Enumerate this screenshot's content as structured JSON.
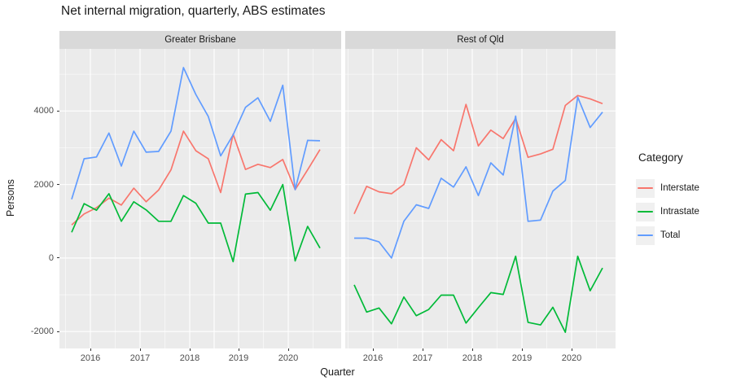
{
  "page_title": "Net internal migration, quarterly, ABS estimates",
  "legend": {
    "title": "Category",
    "items": [
      {
        "label": "Interstate",
        "color": "#F8766D"
      },
      {
        "label": "Intrastate",
        "color": "#00BA38"
      },
      {
        "label": "Total",
        "color": "#619CFF"
      }
    ]
  },
  "colors": {
    "strip_background": "#D9D9D9",
    "panel_background": "#EBEBEB",
    "gridline": "#FFFFFF",
    "axis_text": "#4D4D4D",
    "text": "#1A1A1A",
    "interstate": "#F8766D",
    "intrastate": "#00BA38",
    "total": "#619CFF"
  },
  "chart_data": {
    "type": "line",
    "title": "Net internal migration, quarterly, ABS estimates",
    "xlabel": "Quarter",
    "ylabel": "Persons",
    "grid": true,
    "legend_position": "right",
    "x": [
      "2015 Q3",
      "2015 Q4",
      "2016 Q1",
      "2016 Q2",
      "2016 Q3",
      "2016 Q4",
      "2017 Q1",
      "2017 Q2",
      "2017 Q3",
      "2017 Q4",
      "2018 Q1",
      "2018 Q2",
      "2018 Q3",
      "2018 Q4",
      "2019 Q1",
      "2019 Q2",
      "2019 Q3",
      "2019 Q4",
      "2020 Q1",
      "2020 Q2",
      "2020 Q3"
    ],
    "x_tick_labels": [
      "2016",
      "2017",
      "2018",
      "2019",
      "2020"
    ],
    "y_ticks": [
      -2000,
      0,
      2000,
      4000
    ],
    "y_minor_ticks": [
      -1000,
      1000,
      3000,
      5000
    ],
    "ylim": [
      -2460,
      5690
    ],
    "facets": [
      {
        "label": "Greater Brisbane",
        "series": [
          {
            "name": "Interstate",
            "color": "#F8766D",
            "values": [
              900,
              1200,
              1370,
              1630,
              1440,
              1900,
              1530,
              1850,
              2400,
              3450,
              2920,
              2700,
              1780,
              3370,
              2410,
              2550,
              2460,
              2680,
              1860,
              2400,
              2950
            ]
          },
          {
            "name": "Intrastate",
            "color": "#00BA38",
            "values": [
              700,
              1480,
              1300,
              1750,
              1000,
              1530,
              1310,
              1000,
              1000,
              1700,
              1490,
              950,
              950,
              -100,
              1740,
              1780,
              1300,
              2000,
              -80,
              860,
              270
            ]
          },
          {
            "name": "Total",
            "color": "#619CFF",
            "values": [
              1600,
              2700,
              2750,
              3400,
              2500,
              3450,
              2880,
              2900,
              3450,
              5180,
              4450,
              3850,
              2780,
              3350,
              4100,
              4360,
              3720,
              4700,
              1860,
              3200,
              3190
            ]
          }
        ]
      },
      {
        "label": "Rest of Qld",
        "series": [
          {
            "name": "Interstate",
            "color": "#F8766D",
            "values": [
              1200,
              1950,
              1800,
              1750,
              2000,
              3000,
              2670,
              3220,
              2920,
              4180,
              3050,
              3480,
              3250,
              3800,
              2740,
              2830,
              2960,
              4150,
              4420,
              4330,
              4200
            ]
          },
          {
            "name": "Intrastate",
            "color": "#00BA38",
            "values": [
              -730,
              -1470,
              -1360,
              -1790,
              -1060,
              -1570,
              -1400,
              -1010,
              -1010,
              -1770,
              -1350,
              -940,
              -990,
              50,
              -1750,
              -1820,
              -1340,
              -2020,
              50,
              -890,
              -270
            ]
          },
          {
            "name": "Total",
            "color": "#619CFF",
            "values": [
              540,
              540,
              440,
              0,
              1000,
              1450,
              1350,
              2170,
              1930,
              2480,
              1700,
              2590,
              2260,
              3860,
              1000,
              1030,
              1820,
              2110,
              4380,
              3550,
              3970
            ]
          }
        ]
      }
    ]
  }
}
